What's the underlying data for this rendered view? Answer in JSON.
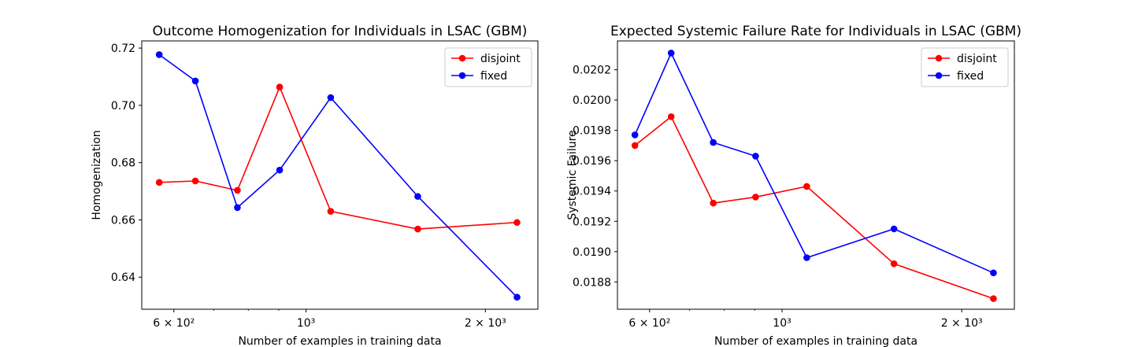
{
  "chart_data": [
    {
      "type": "line",
      "title": "Outcome Homogenization for Individuals in LSAC (GBM)",
      "xlabel": "Number of examples in training data",
      "ylabel": "Homogenization",
      "xscale": "log",
      "xlim": [
        530,
        2450
      ],
      "ylim": [
        0.6288,
        0.7225
      ],
      "xticks": [
        {
          "value": 600,
          "label": "6 × 10²"
        },
        {
          "value": 1000,
          "label": "10³"
        },
        {
          "value": 2000,
          "label": "2 × 10³"
        }
      ],
      "yticks": [
        0.64,
        0.66,
        0.68,
        0.7,
        0.72
      ],
      "legend": "top-right",
      "series": [
        {
          "name": "disjoint",
          "color": "#ff0000",
          "x": [
            567,
            652,
            767,
            903,
            1100,
            1540,
            2260
          ],
          "y": [
            0.6731,
            0.6736,
            0.6703,
            0.7064,
            0.663,
            0.6568,
            0.6591
          ]
        },
        {
          "name": "fixed",
          "color": "#0000ff",
          "x": [
            567,
            652,
            767,
            903,
            1100,
            1540,
            2260
          ],
          "y": [
            0.7177,
            0.7085,
            0.6643,
            0.6774,
            0.7027,
            0.6682,
            0.633
          ]
        }
      ]
    },
    {
      "type": "line",
      "title": "Expected Systemic Failure Rate for Individuals in LSAC (GBM)",
      "xlabel": "Number of examples in training data",
      "ylabel": "Systemic Failure",
      "xscale": "log",
      "xlim": [
        530,
        2450
      ],
      "ylim": [
        0.01862,
        0.02039
      ],
      "xticks": [
        {
          "value": 600,
          "label": "6 × 10²"
        },
        {
          "value": 1000,
          "label": "10³"
        },
        {
          "value": 2000,
          "label": "2 × 10³"
        }
      ],
      "yticks": [
        0.0188,
        0.019,
        0.0192,
        0.0194,
        0.0196,
        0.0198,
        0.02,
        0.0202
      ],
      "ytick_decimals": 4,
      "legend": "top-right",
      "series": [
        {
          "name": "disjoint",
          "color": "#ff0000",
          "x": [
            567,
            652,
            767,
            903,
            1100,
            1540,
            2260
          ],
          "y": [
            0.0197,
            0.01989,
            0.01932,
            0.01936,
            0.01943,
            0.01892,
            0.01869
          ]
        },
        {
          "name": "fixed",
          "color": "#0000ff",
          "x": [
            567,
            652,
            767,
            903,
            1100,
            1540,
            2260
          ],
          "y": [
            0.01977,
            0.02031,
            0.01972,
            0.01963,
            0.01896,
            0.01915,
            0.01886
          ]
        }
      ]
    }
  ]
}
